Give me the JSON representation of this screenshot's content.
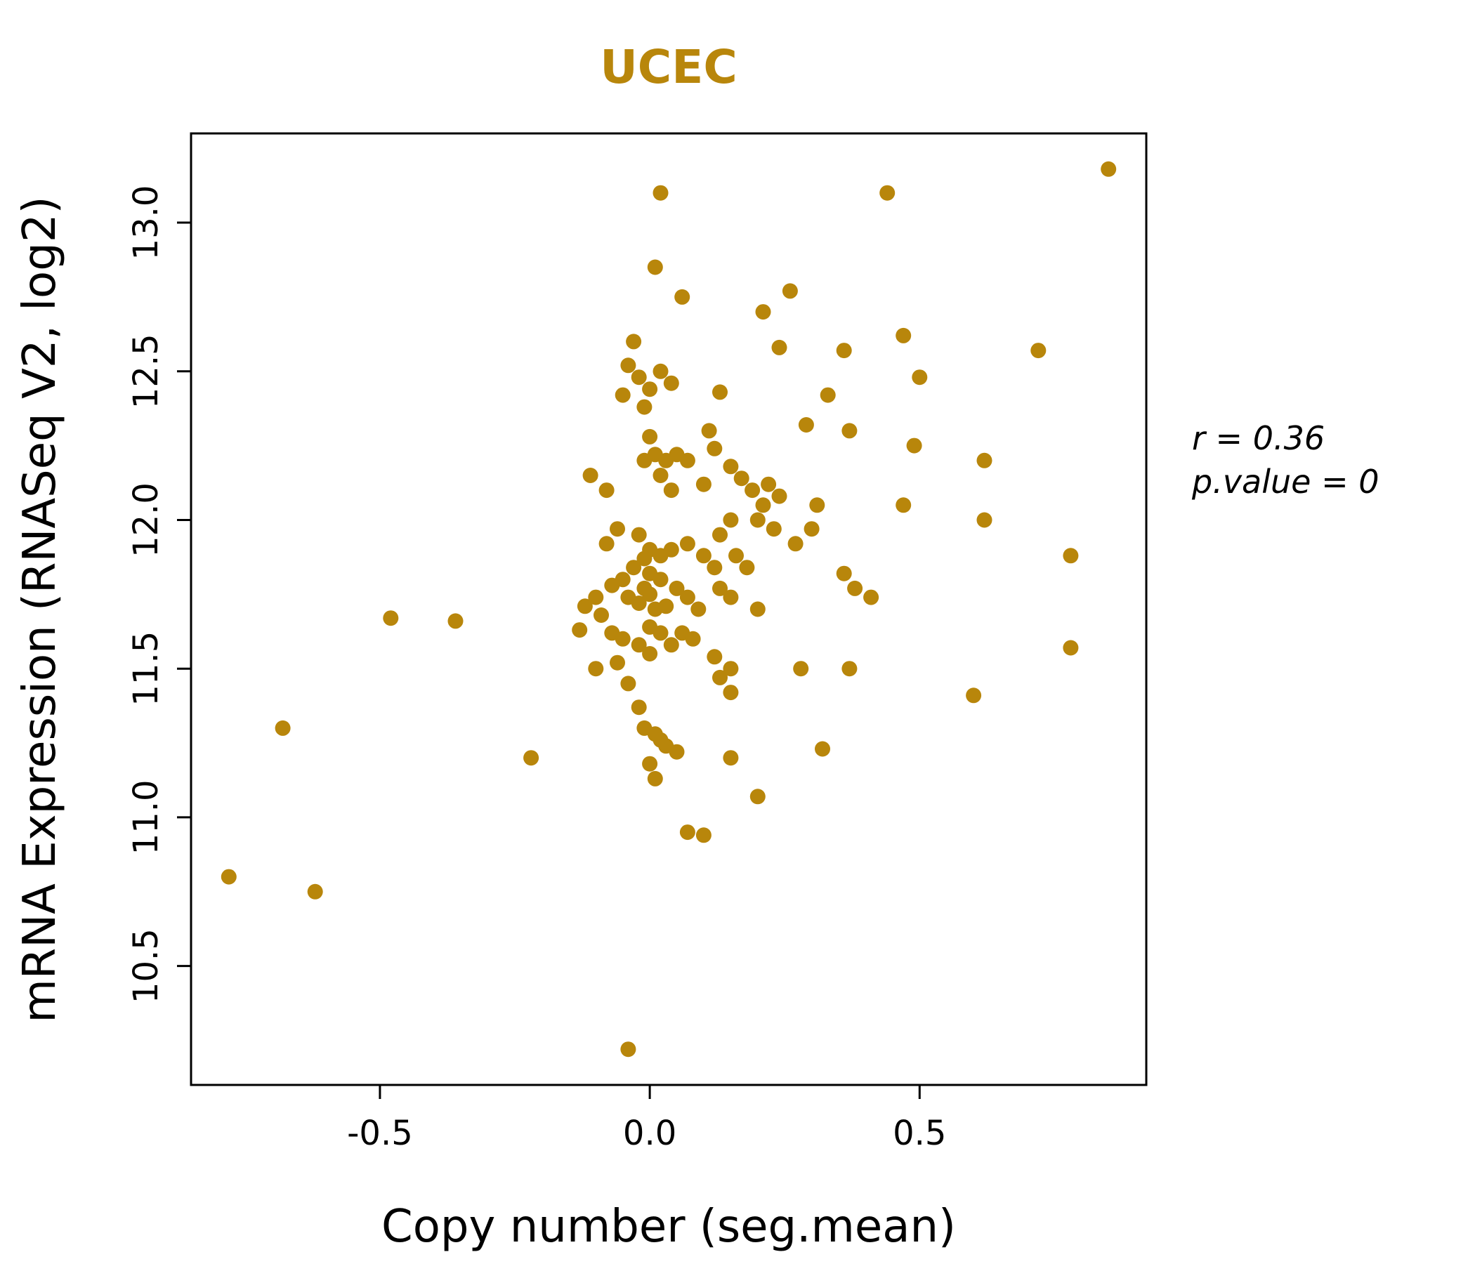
{
  "title": "UCEC",
  "annotation": {
    "line1": "r = 0.36",
    "line2": "p.value = 0"
  },
  "colors": {
    "point": "#B8860B",
    "title": "#B8860B",
    "axis": "#000000"
  },
  "chart_data": {
    "type": "scatter",
    "title": "UCEC",
    "xlabel": "Copy number (seg.mean)",
    "ylabel": "mRNA Expression (RNASeq V2, log2)",
    "xlim": [
      -0.85,
      0.92
    ],
    "ylim": [
      10.1,
      13.3
    ],
    "x_ticks": [
      -0.5,
      0.0,
      0.5
    ],
    "y_ticks": [
      10.5,
      11.0,
      11.5,
      12.0,
      12.5,
      13.0
    ],
    "grid": false,
    "legend": "none",
    "point_color": "#B8860B",
    "title_color": "#B8860B",
    "annotation": [
      "r = 0.36",
      "p.value = 0"
    ],
    "points": [
      [
        -0.78,
        10.8
      ],
      [
        -0.62,
        10.75
      ],
      [
        -0.68,
        11.3
      ],
      [
        -0.48,
        11.67
      ],
      [
        -0.36,
        11.66
      ],
      [
        -0.22,
        11.2
      ],
      [
        -0.04,
        10.22
      ],
      [
        0.07,
        10.95
      ],
      [
        0.1,
        10.94
      ],
      [
        0.2,
        11.07
      ],
      [
        0.01,
        11.13
      ],
      [
        0.85,
        13.18
      ],
      [
        0.44,
        13.1
      ],
      [
        0.72,
        12.57
      ],
      [
        0.78,
        11.88
      ],
      [
        0.78,
        11.57
      ],
      [
        0.6,
        11.41
      ],
      [
        0.62,
        12.2
      ],
      [
        0.62,
        12.0
      ],
      [
        0.47,
        12.62
      ],
      [
        0.5,
        12.48
      ],
      [
        0.49,
        12.25
      ],
      [
        0.47,
        12.05
      ],
      [
        0.36,
        12.57
      ],
      [
        0.37,
        12.3
      ],
      [
        0.33,
        12.42
      ],
      [
        0.02,
        13.1
      ],
      [
        0.01,
        12.85
      ],
      [
        0.06,
        12.75
      ],
      [
        0.26,
        12.77
      ],
      [
        0.21,
        12.7
      ],
      [
        0.24,
        12.58
      ],
      [
        -0.03,
        12.6
      ],
      [
        -0.04,
        12.52
      ],
      [
        -0.02,
        12.48
      ],
      [
        -0.05,
        12.42
      ],
      [
        0.0,
        12.44
      ],
      [
        0.02,
        12.5
      ],
      [
        0.04,
        12.46
      ],
      [
        -0.01,
        12.38
      ],
      [
        0.13,
        12.43
      ],
      [
        0.29,
        12.32
      ],
      [
        0.11,
        12.3
      ],
      [
        0.12,
        12.24
      ],
      [
        -0.11,
        12.15
      ],
      [
        -0.08,
        12.1
      ],
      [
        0.0,
        12.28
      ],
      [
        -0.01,
        12.2
      ],
      [
        0.01,
        12.22
      ],
      [
        0.03,
        12.2
      ],
      [
        0.05,
        12.22
      ],
      [
        0.07,
        12.2
      ],
      [
        0.02,
        12.15
      ],
      [
        0.04,
        12.1
      ],
      [
        0.1,
        12.12
      ],
      [
        0.15,
        12.18
      ],
      [
        0.17,
        12.14
      ],
      [
        0.19,
        12.1
      ],
      [
        0.22,
        12.12
      ],
      [
        0.21,
        12.05
      ],
      [
        0.24,
        12.08
      ],
      [
        0.31,
        12.05
      ],
      [
        0.3,
        11.97
      ],
      [
        0.2,
        12.0
      ],
      [
        0.23,
        11.97
      ],
      [
        0.15,
        12.0
      ],
      [
        0.13,
        11.95
      ],
      [
        -0.06,
        11.97
      ],
      [
        -0.08,
        11.92
      ],
      [
        -0.02,
        11.95
      ],
      [
        0.0,
        11.9
      ],
      [
        -0.01,
        11.87
      ],
      [
        0.02,
        11.88
      ],
      [
        0.04,
        11.9
      ],
      [
        -0.03,
        11.84
      ],
      [
        0.0,
        11.82
      ],
      [
        0.02,
        11.8
      ],
      [
        -0.05,
        11.8
      ],
      [
        0.07,
        11.92
      ],
      [
        0.1,
        11.88
      ],
      [
        0.12,
        11.84
      ],
      [
        0.16,
        11.88
      ],
      [
        0.18,
        11.84
      ],
      [
        0.27,
        11.92
      ],
      [
        0.36,
        11.82
      ],
      [
        0.38,
        11.77
      ],
      [
        0.41,
        11.74
      ],
      [
        0.05,
        11.77
      ],
      [
        0.07,
        11.74
      ],
      [
        -0.07,
        11.78
      ],
      [
        -0.1,
        11.74
      ],
      [
        -0.12,
        11.71
      ],
      [
        -0.09,
        11.68
      ],
      [
        -0.04,
        11.74
      ],
      [
        -0.02,
        11.72
      ],
      [
        0.0,
        11.75
      ],
      [
        0.01,
        11.7
      ],
      [
        0.03,
        11.71
      ],
      [
        -0.01,
        11.77
      ],
      [
        0.09,
        11.7
      ],
      [
        0.13,
        11.77
      ],
      [
        0.15,
        11.74
      ],
      [
        0.2,
        11.7
      ],
      [
        -0.13,
        11.63
      ],
      [
        -0.07,
        11.62
      ],
      [
        -0.05,
        11.6
      ],
      [
        0.0,
        11.64
      ],
      [
        0.02,
        11.62
      ],
      [
        -0.02,
        11.58
      ],
      [
        0.04,
        11.58
      ],
      [
        0.06,
        11.62
      ],
      [
        0.08,
        11.6
      ],
      [
        -0.1,
        11.5
      ],
      [
        -0.06,
        11.52
      ],
      [
        -0.04,
        11.45
      ],
      [
        0.0,
        11.55
      ],
      [
        0.12,
        11.54
      ],
      [
        0.13,
        11.47
      ],
      [
        0.15,
        11.5
      ],
      [
        0.28,
        11.5
      ],
      [
        0.37,
        11.5
      ],
      [
        0.15,
        11.42
      ],
      [
        -0.02,
        11.37
      ],
      [
        -0.01,
        11.3
      ],
      [
        0.01,
        11.28
      ],
      [
        0.02,
        11.26
      ],
      [
        0.03,
        11.24
      ],
      [
        0.32,
        11.23
      ],
      [
        0.15,
        11.2
      ],
      [
        0.0,
        11.18
      ],
      [
        0.05,
        11.22
      ]
    ]
  }
}
